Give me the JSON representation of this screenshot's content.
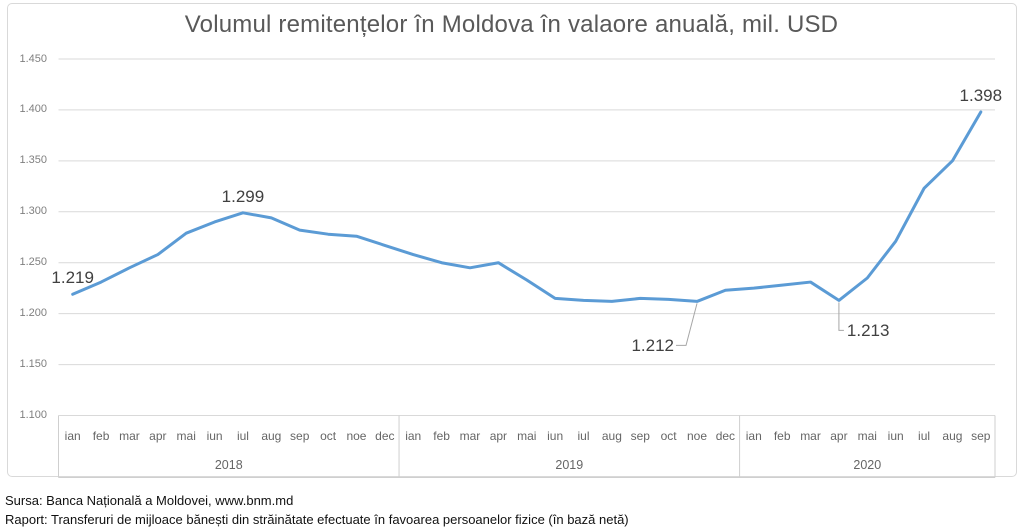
{
  "chart_data": {
    "type": "line",
    "title": "Volumul remitențelor în Moldova în valaore anuală, mil. USD",
    "ylabel": "",
    "xlabel": "",
    "unit": "mil. USD",
    "number_format": "european thousands dot (1.450 = 1450)",
    "ylim": [
      1100,
      1450
    ],
    "y_tick_labels": [
      "1.450",
      "1.400",
      "1.350",
      "1.300",
      "1.250",
      "1.200",
      "1.150",
      "1.100"
    ],
    "y_tick_values": [
      1450,
      1400,
      1350,
      1300,
      1250,
      1200,
      1150,
      1100
    ],
    "grid": true,
    "legend": "none",
    "groups": [
      {
        "year": "2018",
        "months": [
          "ian",
          "feb",
          "mar",
          "apr",
          "mai",
          "iun",
          "iul",
          "aug",
          "sep",
          "oct",
          "noe",
          "dec"
        ],
        "values": [
          1219,
          1231,
          1245,
          1258,
          1279,
          1290,
          1299,
          1294,
          1282,
          1278,
          1276,
          1267
        ]
      },
      {
        "year": "2019",
        "months": [
          "ian",
          "feb",
          "mar",
          "apr",
          "mai",
          "iun",
          "iul",
          "aug",
          "sep",
          "oct",
          "noe",
          "dec"
        ],
        "values": [
          1258,
          1250,
          1245,
          1250,
          1233,
          1215,
          1213,
          1212,
          1215,
          1214,
          1212,
          1223
        ]
      },
      {
        "year": "2020",
        "months": [
          "ian",
          "feb",
          "mar",
          "apr",
          "mai",
          "iun",
          "iul",
          "aug",
          "sep"
        ],
        "values": [
          1225,
          1228,
          1231,
          1213,
          1235,
          1271,
          1323,
          1350,
          1398
        ]
      }
    ],
    "annotations": [
      {
        "label": "1.219",
        "value": 1219,
        "year": "2018",
        "month": "ian",
        "month_index": 0,
        "placement": "above"
      },
      {
        "label": "1.299",
        "value": 1299,
        "year": "2018",
        "month": "iul",
        "month_index": 6,
        "placement": "above"
      },
      {
        "label": "1.212",
        "value": 1212,
        "year": "2019",
        "month": "noe",
        "month_index": 22,
        "placement": "callout-left"
      },
      {
        "label": "1.213",
        "value": 1213,
        "year": "2020",
        "month": "apr",
        "month_index": 27,
        "placement": "callout-below"
      },
      {
        "label": "1.398",
        "value": 1398,
        "year": "2020",
        "month": "sep",
        "month_index": 32,
        "placement": "above"
      }
    ]
  },
  "footer": {
    "line1": "Sursa: Banca Națională a Moldovei, www.bnm.md",
    "line2": "Raport: Transferuri de mijloace bănești din străinătate efectuate în favoarea persoanelor fizice (în bază netă)"
  },
  "colors": {
    "series": "#5B9BD5",
    "grid": "#D9D9D9",
    "band_line": "#CFCFCF",
    "leader": "#A6A6A6",
    "title_text": "#595959",
    "axis_text": "#666666",
    "tick_text": "#7F7F7F",
    "data_label_text": "#404040",
    "frame_border": "#D9D9D9",
    "background": "#FFFFFF"
  }
}
